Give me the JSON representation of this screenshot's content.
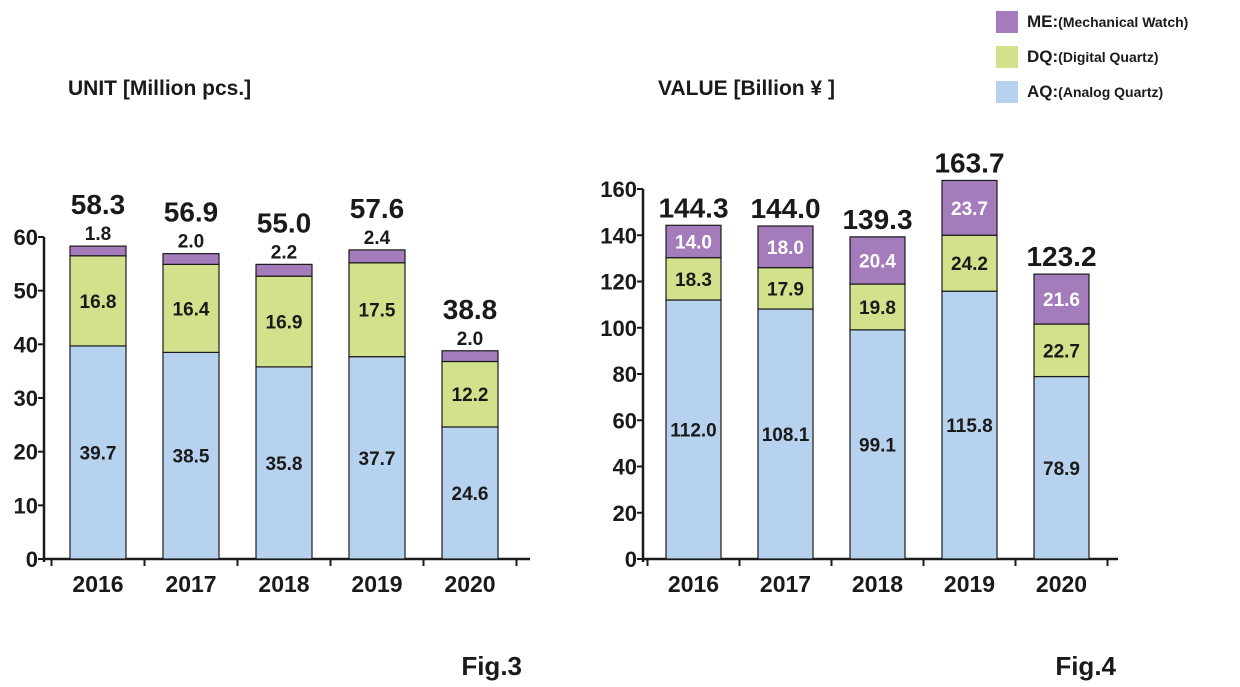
{
  "legend": {
    "items": [
      {
        "code": "ME",
        "sep": " : ",
        "desc": "(Mechanical Watch)",
        "color": "#a47cbc"
      },
      {
        "code": "DQ",
        "sep": " : ",
        "desc": "(Digital Quartz)",
        "color": "#d2e28c"
      },
      {
        "code": "AQ",
        "sep": " : ",
        "desc": "(Analog Quartz)",
        "color": "#b6d2ee"
      }
    ]
  },
  "chart_data": [
    {
      "type": "bar",
      "stacked": true,
      "title": "UNIT [Million pcs.]",
      "figure_label": "Fig.3",
      "categories": [
        "2016",
        "2017",
        "2018",
        "2019",
        "2020"
      ],
      "series": [
        {
          "name": "AQ",
          "values": [
            39.7,
            38.5,
            35.8,
            37.7,
            24.6
          ]
        },
        {
          "name": "DQ",
          "values": [
            16.8,
            16.4,
            16.9,
            17.5,
            12.2
          ]
        },
        {
          "name": "ME",
          "values": [
            1.8,
            2.0,
            2.2,
            2.4,
            2.0
          ]
        }
      ],
      "totals": [
        58.3,
        56.9,
        55.0,
        57.6,
        38.8
      ],
      "value_labels": {
        "AQ": [
          "39.7",
          "38.5",
          "35.8",
          "37.7",
          "24.6"
        ],
        "DQ": [
          "16.8",
          "16.4",
          "16.9",
          "17.5",
          "12.2"
        ],
        "ME": [
          "1.8",
          "2.0",
          "2.2",
          "2.4",
          "2.0"
        ],
        "total": [
          "58.3",
          "56.9",
          "55.0",
          "57.6",
          "38.8"
        ]
      },
      "ylim": [
        0,
        60
      ],
      "yticks": [
        0,
        10,
        20,
        30,
        40,
        50,
        60
      ],
      "me_label_position": "above",
      "grid": false
    },
    {
      "type": "bar",
      "stacked": true,
      "title": "VALUE [Billion ¥ ]",
      "figure_label": "Fig.4",
      "categories": [
        "2016",
        "2017",
        "2018",
        "2019",
        "2020"
      ],
      "series": [
        {
          "name": "AQ",
          "values": [
            112.0,
            108.1,
            99.1,
            115.8,
            78.9
          ]
        },
        {
          "name": "DQ",
          "values": [
            18.3,
            17.9,
            19.8,
            24.2,
            22.7
          ]
        },
        {
          "name": "ME",
          "values": [
            14.0,
            18.0,
            20.4,
            23.7,
            21.6
          ]
        }
      ],
      "totals": [
        144.3,
        144.0,
        139.3,
        163.7,
        123.2
      ],
      "value_labels": {
        "AQ": [
          "112.0",
          "108.1",
          "99.1",
          "115.8",
          "78.9"
        ],
        "DQ": [
          "18.3",
          "17.9",
          "19.8",
          "24.2",
          "22.7"
        ],
        "ME": [
          "14.0",
          "18.0",
          "20.4",
          "23.7",
          "21.6"
        ],
        "total": [
          "144.3",
          "144.0",
          "139.3",
          "163.7",
          "123.2"
        ]
      },
      "ylim": [
        0,
        160
      ],
      "yticks": [
        0,
        20,
        40,
        60,
        80,
        100,
        120,
        140,
        160
      ],
      "me_label_position": "inside",
      "grid": false
    }
  ]
}
